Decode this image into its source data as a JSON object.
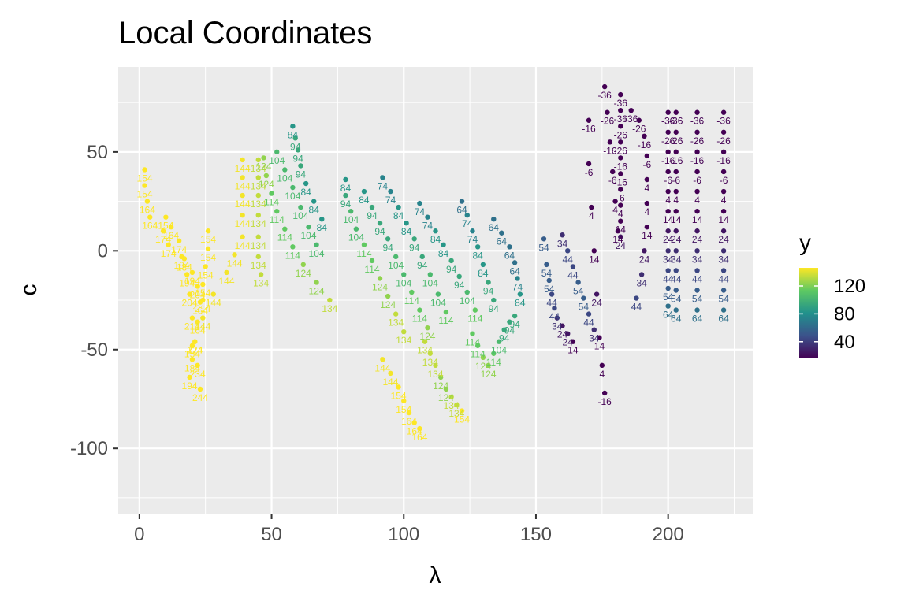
{
  "chart_data": {
    "type": "scatter",
    "title": "Local Coordinates",
    "xlabel": "λ",
    "ylabel": "c",
    "xlim": [
      -8,
      232
    ],
    "ylim": [
      -133,
      93
    ],
    "x_ticks": [
      0,
      50,
      100,
      150,
      200
    ],
    "y_ticks": [
      -100,
      -50,
      0,
      50
    ],
    "grid": true,
    "legend": {
      "title": "y",
      "position": "right",
      "ticks": [
        40,
        80,
        120
      ],
      "range": [
        16,
        146
      ],
      "colormap": [
        "#440154",
        "#3b528b",
        "#21918c",
        "#5ec962",
        "#fde725"
      ]
    },
    "strips": [
      {
        "x": [
          2,
          2,
          3,
          4,
          9,
          11,
          17,
          20,
          22,
          24
        ],
        "y": [
          41,
          33,
          25,
          17,
          10,
          3,
          -4,
          -11,
          -18,
          -25
        ],
        "labels": [
          "154",
          "154",
          "164",
          "164",
          "174",
          "174",
          "184",
          "194",
          "204",
          "214"
        ]
      },
      {
        "x": [
          10,
          12,
          15,
          16,
          18,
          19,
          20,
          21,
          22,
          23
        ],
        "y": [
          17,
          12,
          5,
          -3,
          -12,
          -22,
          -34,
          -46,
          -58,
          -70
        ],
        "labels": [
          "154",
          "164",
          "174",
          "184",
          "194",
          "204",
          "214",
          "224",
          "234",
          "244"
        ]
      },
      {
        "x": [
          26,
          26,
          25,
          24,
          23,
          22,
          21,
          20,
          19
        ],
        "y": [
          10,
          1,
          -8,
          -17,
          -26,
          -36,
          -46,
          -55,
          -64
        ],
        "labels": [
          "154",
          "154",
          "154",
          "154",
          "164",
          "164",
          "174",
          "184",
          "194"
        ]
      },
      {
        "x": [
          39,
          39,
          39,
          39,
          39,
          36,
          33,
          28,
          24,
          20
        ],
        "y": [
          46,
          37,
          28,
          18,
          7,
          -2,
          -11,
          -22,
          -34,
          -48
        ],
        "labels": [
          "144",
          "144",
          "144",
          "144",
          "144",
          "144",
          "144",
          "144",
          "144",
          "154"
        ]
      },
      {
        "x": [
          45,
          45,
          45,
          45,
          45,
          45,
          46
        ],
        "y": [
          46,
          37,
          28,
          18,
          7,
          -3,
          -12
        ],
        "labels": [
          "134",
          "134",
          "134",
          "134",
          "134",
          "134",
          "134"
        ]
      },
      {
        "x": [
          47,
          48,
          50,
          52,
          55,
          58,
          62,
          67,
          72
        ],
        "y": [
          47,
          38,
          29,
          20,
          11,
          2,
          -7,
          -16,
          -25
        ],
        "labels": [
          "124",
          "124",
          "114",
          "114",
          "114",
          "114",
          "124",
          "124",
          "134"
        ]
      },
      {
        "x": [
          52,
          55,
          58,
          61,
          64,
          67
        ],
        "y": [
          50,
          41,
          32,
          22,
          12,
          3
        ],
        "labels": [
          "104",
          "104",
          "104",
          "104",
          "104",
          "104"
        ]
      },
      {
        "x": [
          58,
          59,
          60,
          61,
          63,
          66,
          69
        ],
        "y": [
          63,
          57,
          51,
          43,
          34,
          25,
          16
        ],
        "labels": [
          "84",
          "94",
          "94",
          "94",
          "84",
          "84",
          "84"
        ]
      },
      {
        "x": [
          78,
          78,
          80,
          82,
          85,
          88,
          91,
          94,
          97,
          100
        ],
        "y": [
          36,
          28,
          20,
          11,
          3,
          -5,
          -14,
          -23,
          -32,
          -41
        ],
        "labels": [
          "84",
          "94",
          "104",
          "104",
          "114",
          "114",
          "124",
          "124",
          "134",
          "134"
        ]
      },
      {
        "x": [
          85,
          88,
          91,
          94,
          97,
          100,
          103,
          106,
          109
        ],
        "y": [
          30,
          22,
          14,
          6,
          -3,
          -12,
          -21,
          -30,
          -39
        ],
        "labels": [
          "84",
          "94",
          "94",
          "94",
          "104",
          "104",
          "114",
          "114",
          "124"
        ]
      },
      {
        "x": [
          92,
          95,
          98,
          101,
          104,
          107,
          110,
          113,
          116
        ],
        "y": [
          37,
          30,
          22,
          14,
          6,
          -3,
          -12,
          -22,
          -31
        ],
        "labels": [
          "74",
          "74",
          "84",
          "84",
          "94",
          "94",
          "104",
          "104",
          "114"
        ]
      },
      {
        "x": [
          106,
          109,
          112,
          115,
          118,
          121,
          124,
          127
        ],
        "y": [
          24,
          17,
          10,
          3,
          -5,
          -13,
          -21,
          -30
        ],
        "labels": [
          "74",
          "74",
          "84",
          "84",
          "94",
          "94",
          "104",
          "114"
        ]
      },
      {
        "x": [
          122,
          124,
          126,
          128,
          130,
          132,
          134
        ],
        "y": [
          25,
          18,
          10,
          2,
          -7,
          -16,
          -25
        ],
        "labels": [
          "64",
          "74",
          "74",
          "84",
          "84",
          "94",
          "94"
        ]
      },
      {
        "x": [
          134,
          137,
          140,
          142,
          143,
          144
        ],
        "y": [
          16,
          9,
          2,
          -6,
          -14,
          -22
        ],
        "labels": [
          "64",
          "64",
          "64",
          "64",
          "74",
          "84"
        ]
      },
      {
        "x": [
          92,
          95,
          98,
          100,
          102,
          104,
          106
        ],
        "y": [
          -55,
          -62,
          -69,
          -76,
          -82,
          -87,
          -90
        ],
        "labels": [
          "144",
          "144",
          "154",
          "154",
          "164",
          "164",
          "164"
        ]
      },
      {
        "x": [
          108,
          110,
          112,
          114,
          116,
          118,
          120,
          122
        ],
        "y": [
          -46,
          -52,
          -58,
          -64,
          -70,
          -74,
          -78,
          -81
        ],
        "labels": [
          "134",
          "134",
          "134",
          "124",
          "124",
          "134",
          "134",
          "154"
        ]
      },
      {
        "x": [
          126,
          128,
          130,
          132,
          134,
          136,
          138,
          140,
          142
        ],
        "y": [
          -42,
          -48,
          -54,
          -58,
          -52,
          -46,
          -40,
          -36,
          -33
        ],
        "labels": [
          "114",
          "114",
          "124",
          "124",
          "114",
          "104",
          "94",
          "94",
          "94"
        ]
      },
      {
        "x": [
          153,
          154,
          155,
          156,
          157,
          158,
          160,
          162,
          164
        ],
        "y": [
          6,
          -7,
          -15,
          -22,
          -29,
          -34,
          -38,
          -42,
          -46
        ],
        "labels": [
          "54",
          "54",
          "54",
          "44",
          "44",
          "34",
          "24",
          "24",
          "14"
        ]
      },
      {
        "x": [
          160,
          162,
          164,
          166,
          168,
          170,
          172
        ],
        "y": [
          8,
          0,
          -8,
          -16,
          -24,
          -32,
          -40
        ],
        "labels": [
          "34",
          "44",
          "44",
          "54",
          "54",
          "44",
          "34"
        ]
      },
      {
        "x": [
          170,
          170,
          171,
          172,
          173,
          174,
          175,
          176
        ],
        "y": [
          66,
          44,
          22,
          0,
          -22,
          -44,
          -58,
          -72
        ],
        "labels": [
          "-16",
          "-6",
          "4",
          "14",
          "24",
          "14",
          "4",
          "-16"
        ]
      },
      {
        "x": [
          176,
          177,
          178,
          179,
          180,
          181
        ],
        "y": [
          83,
          70,
          55,
          40,
          25,
          10
        ],
        "labels": [
          "-36",
          "-26",
          "-16",
          "-6",
          "4",
          "14"
        ]
      },
      {
        "x": [
          182,
          182,
          182,
          182,
          182,
          182,
          182,
          182,
          182,
          182
        ],
        "y": [
          79,
          71,
          63,
          55,
          47,
          39,
          31,
          23,
          15,
          7
        ],
        "labels": [
          "-36",
          "-36",
          "-26",
          "-26",
          "-16",
          "-16",
          "-6",
          "4",
          "14",
          "24"
        ]
      },
      {
        "x": [
          188,
          190,
          191,
          192,
          192,
          192,
          192,
          191,
          189,
          186
        ],
        "y": [
          -24,
          -12,
          0,
          12,
          24,
          36,
          48,
          58,
          66,
          71
        ],
        "labels": [
          "44",
          "34",
          "24",
          "14",
          "4",
          "4",
          "-6",
          "-16",
          "-26",
          "-36"
        ]
      },
      {
        "x": [
          200,
          200,
          200,
          200,
          200,
          200,
          200,
          200,
          200,
          200,
          200
        ],
        "y": [
          -28,
          -19,
          -10,
          0,
          10,
          20,
          30,
          40,
          50,
          60,
          70
        ],
        "labels": [
          "64",
          "54",
          "44",
          "34",
          "24",
          "14",
          "4",
          "-6",
          "-16",
          "-26",
          "-36"
        ]
      },
      {
        "x": [
          203,
          203,
          203,
          203,
          203,
          203,
          203,
          203,
          203,
          203,
          203
        ],
        "y": [
          -30,
          -20,
          -10,
          0,
          10,
          20,
          30,
          40,
          50,
          60,
          70
        ],
        "labels": [
          "64",
          "54",
          "44",
          "34",
          "24",
          "14",
          "4",
          "-6",
          "-16",
          "-26",
          "-36"
        ]
      },
      {
        "x": [
          211,
          211,
          211,
          211,
          211,
          211,
          211,
          211,
          211,
          211,
          211
        ],
        "y": [
          -30,
          -20,
          -10,
          0,
          10,
          20,
          30,
          40,
          50,
          60,
          70
        ],
        "labels": [
          "64",
          "54",
          "44",
          "34",
          "24",
          "14",
          "4",
          "-6",
          "-16",
          "-26",
          "-36"
        ]
      },
      {
        "x": [
          221,
          221,
          221,
          221,
          221,
          221,
          221,
          221,
          221,
          221,
          221
        ],
        "y": [
          -30,
          -20,
          -10,
          0,
          10,
          20,
          30,
          40,
          50,
          60,
          70
        ],
        "labels": [
          "64",
          "54",
          "44",
          "34",
          "24",
          "14",
          "4",
          "-6",
          "-16",
          "-26",
          "-36"
        ]
      }
    ]
  }
}
